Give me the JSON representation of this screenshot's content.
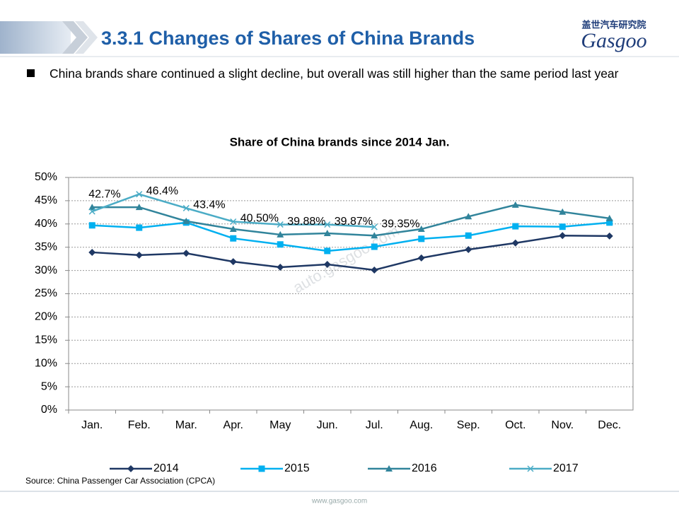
{
  "header": {
    "title": "3.3.1 Changes of Shares of China Brands"
  },
  "logo": {
    "cn": "盖世汽车研究院",
    "en": "Gasgoo"
  },
  "bullet": "China brands share continued a slight decline, but overall was still higher than the same period last year",
  "watermark": "auto.gasgoo.com",
  "source": "Source: China Passenger Car Association (CPCA)",
  "footer": "www.gasgoo.com",
  "chart_data": {
    "type": "line",
    "title": "Share of China brands since 2014 Jan.",
    "categories": [
      "Jan.",
      "Feb.",
      "Mar.",
      "Apr.",
      "May",
      "Jun.",
      "Jul.",
      "Aug.",
      "Sep.",
      "Oct.",
      "Nov.",
      "Dec."
    ],
    "ylim": [
      0,
      50
    ],
    "yticks": [
      {
        "value": 0,
        "label": "0%"
      },
      {
        "value": 5,
        "label": "5%"
      },
      {
        "value": 10,
        "label": "10%"
      },
      {
        "value": 15,
        "label": "15%"
      },
      {
        "value": 20,
        "label": "20%"
      },
      {
        "value": 25,
        "label": "25%"
      },
      {
        "value": 30,
        "label": "30%"
      },
      {
        "value": 35,
        "label": "35%"
      },
      {
        "value": 40,
        "label": "40%"
      },
      {
        "value": 45,
        "label": "45%"
      },
      {
        "value": 50,
        "label": "50%"
      }
    ],
    "grid": true,
    "legend": "bottom",
    "series": [
      {
        "name": "2014",
        "color": "#1f3864",
        "marker": "diamond",
        "values": [
          33.9,
          33.3,
          33.7,
          31.9,
          30.7,
          31.3,
          30.1,
          32.7,
          34.5,
          35.9,
          37.5,
          37.4
        ]
      },
      {
        "name": "2015",
        "color": "#00b0f0",
        "marker": "square",
        "values": [
          39.7,
          39.2,
          40.3,
          36.9,
          35.6,
          34.2,
          35.1,
          36.8,
          37.5,
          39.5,
          39.4,
          40.3
        ]
      },
      {
        "name": "2016",
        "color": "#31849b",
        "marker": "triangle",
        "values": [
          43.6,
          43.6,
          40.6,
          38.9,
          37.7,
          38.0,
          37.5,
          38.9,
          41.6,
          44.1,
          42.6,
          41.2
        ]
      },
      {
        "name": "2017",
        "color": "#4bacc6",
        "marker": "x",
        "values": [
          42.7,
          46.4,
          43.4,
          40.5,
          39.88,
          39.87,
          39.35,
          null,
          null,
          null,
          null,
          null
        ],
        "value_labels": [
          "42.7%",
          "46.4%",
          "43.4%",
          "40.50%",
          "39.88%",
          "39.87%",
          "39.35%",
          null,
          null,
          null,
          null,
          null
        ]
      }
    ]
  }
}
